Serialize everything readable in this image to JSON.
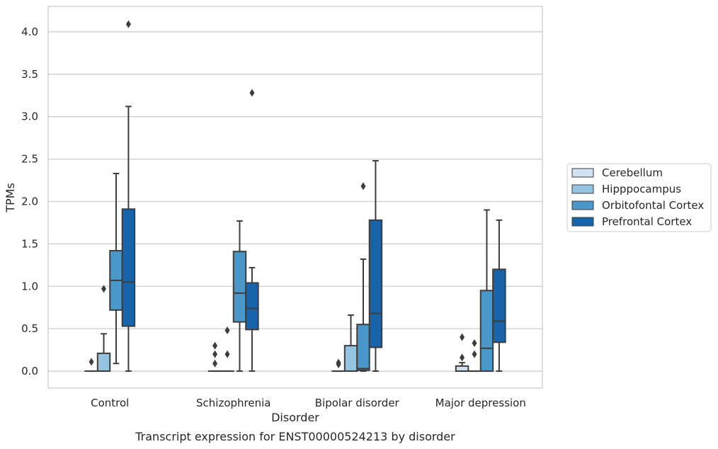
{
  "chart_data": {
    "type": "boxplot",
    "title": "Transcript expression for ENST00000524213 by disorder",
    "xlabel": "Disorder",
    "ylabel": "TPMs",
    "ylim": [
      -0.2,
      4.3
    ],
    "yticks": [
      "0.0",
      "0.5",
      "1.0",
      "1.5",
      "2.0",
      "2.5",
      "3.0",
      "3.5",
      "4.0"
    ],
    "ytick_values": [
      0,
      0.5,
      1.0,
      1.5,
      2.0,
      2.5,
      3.0,
      3.5,
      4.0
    ],
    "grid": true,
    "legend_position": "right",
    "categories": [
      "Control",
      "Schizophrenia",
      "Bipolar disorder",
      "Major depression"
    ],
    "series": [
      {
        "name": "Cerebellum",
        "color": "#d0e1f2",
        "boxes": [
          {
            "q1": 0,
            "median": 0,
            "q3": 0,
            "whislo": 0,
            "whishi": 0,
            "fliers": [
              0.11
            ]
          },
          {
            "q1": 0,
            "median": 0,
            "q3": 0,
            "whislo": 0,
            "whishi": 0,
            "fliers": [
              0.09,
              0.2,
              0.3
            ]
          },
          {
            "q1": 0,
            "median": 0,
            "q3": 0,
            "whislo": 0,
            "whishi": 0,
            "fliers": [
              0.08,
              0.1
            ]
          },
          {
            "q1": 0,
            "median": 0,
            "q3": 0.06,
            "whislo": 0,
            "whishi": 0.1,
            "fliers": [
              0.16,
              0.4
            ]
          }
        ]
      },
      {
        "name": "Hipppocampus",
        "color": "#94c4df",
        "boxes": [
          {
            "q1": 0,
            "median": 0,
            "q3": 0.21,
            "whislo": 0,
            "whishi": 0.44,
            "fliers": [
              0.97
            ]
          },
          {
            "q1": 0,
            "median": 0,
            "q3": 0,
            "whislo": 0,
            "whishi": 0,
            "fliers": [
              0.2,
              0.48
            ]
          },
          {
            "q1": 0,
            "median": 0,
            "q3": 0.3,
            "whislo": 0,
            "whishi": 0.66,
            "fliers": []
          },
          {
            "q1": 0,
            "median": 0,
            "q3": 0,
            "whislo": 0,
            "whishi": 0,
            "fliers": [
              0.2,
              0.33
            ]
          }
        ]
      },
      {
        "name": "Orbitofontal Cortex",
        "color": "#4a98c9",
        "boxes": [
          {
            "q1": 0.72,
            "median": 1.07,
            "q3": 1.42,
            "whislo": 0.09,
            "whishi": 2.33,
            "fliers": []
          },
          {
            "q1": 0.58,
            "median": 0.92,
            "q3": 1.41,
            "whislo": 0,
            "whishi": 1.77,
            "fliers": []
          },
          {
            "q1": 0.01,
            "median": 0.03,
            "q3": 0.55,
            "whislo": 0,
            "whishi": 1.32,
            "fliers": [
              2.18
            ]
          },
          {
            "q1": 0,
            "median": 0.27,
            "q3": 0.95,
            "whislo": 0,
            "whishi": 1.9,
            "fliers": []
          }
        ]
      },
      {
        "name": "Prefrontal Cortex",
        "color": "#1764ab",
        "boxes": [
          {
            "q1": 0.53,
            "median": 1.05,
            "q3": 1.91,
            "whislo": 0,
            "whishi": 3.12,
            "fliers": [
              4.09
            ]
          },
          {
            "q1": 0.49,
            "median": 0.74,
            "q3": 1.04,
            "whislo": 0,
            "whishi": 1.22,
            "fliers": [
              3.28
            ]
          },
          {
            "q1": 0.28,
            "median": 0.68,
            "q3": 1.78,
            "whislo": 0,
            "whishi": 2.48,
            "fliers": []
          },
          {
            "q1": 0.34,
            "median": 0.59,
            "q3": 1.2,
            "whislo": 0,
            "whishi": 1.78,
            "fliers": []
          }
        ]
      }
    ]
  }
}
